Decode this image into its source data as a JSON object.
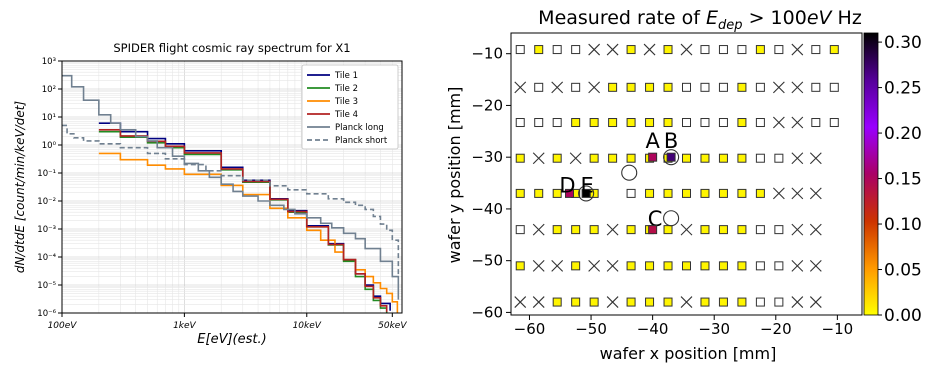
{
  "chart_data": [
    {
      "type": "line",
      "title": "SPIDER flight cosmic ray spectrum for X1",
      "xlabel": "E[eV](est.)",
      "ylabel": "dN/dtdE [count/min/keV/det]",
      "xscale": "log",
      "yscale": "log",
      "xlim": [
        100,
        60000
      ],
      "ylim": [
        1e-06,
        1000
      ],
      "x_ticks": [
        100,
        1000,
        10000,
        50000
      ],
      "x_tick_labels": [
        "100eV",
        "1keV",
        "10keV",
        "50keV"
      ],
      "y_ticks": [
        1e-06,
        1e-05,
        0.0001,
        0.001,
        0.01,
        0.1,
        1,
        10,
        100,
        1000
      ],
      "y_tick_labels": [
        "10⁻⁶",
        "10⁻⁵",
        "10⁻⁴",
        "10⁻³",
        "10⁻²",
        "10⁻¹",
        "10⁰",
        "10¹",
        "10²",
        "10³"
      ],
      "grid": true,
      "legend_position": "top-right",
      "series": [
        {
          "name": "Tile 1",
          "color": "#000080",
          "style": "step",
          "x": [
            200,
            300,
            500,
            700,
            1000,
            2000,
            3000,
            5000,
            7000,
            10000,
            15000,
            20000,
            25000,
            30000,
            35000,
            40000,
            48000
          ],
          "y": [
            6,
            3,
            1.7,
            1.1,
            0.62,
            0.16,
            0.055,
            0.012,
            0.0045,
            0.0013,
            0.0003,
            8e-05,
            2.5e-05,
            1e-05,
            4e-06,
            2.2e-06,
            1.2e-06
          ]
        },
        {
          "name": "Tile 2",
          "color": "#228b22",
          "style": "step",
          "x": [
            200,
            300,
            500,
            700,
            1000,
            2000,
            3000,
            5000,
            7000,
            10000,
            15000,
            20000,
            25000,
            30000,
            35000,
            40000,
            45000
          ],
          "y": [
            3,
            1.9,
            1.2,
            0.8,
            0.46,
            0.13,
            0.047,
            0.011,
            0.004,
            0.0012,
            0.00027,
            7e-05,
            2e-05,
            7e-06,
            2.8e-06,
            1.5e-06,
            1e-06
          ]
        },
        {
          "name": "Tile 3",
          "color": "#ff8c00",
          "style": "step",
          "x": [
            200,
            300,
            500,
            700,
            1000,
            2000,
            3000,
            5000,
            7000,
            10000,
            13000,
            17000,
            20000,
            25000,
            30000,
            35000,
            40000,
            45000,
            50000,
            55000
          ],
          "y": [
            0.5,
            0.3,
            0.19,
            0.14,
            0.09,
            0.036,
            0.017,
            0.0055,
            0.0025,
            0.0009,
            0.0004,
            0.00015,
            8e-05,
            3.5e-05,
            2e-05,
            1.2e-05,
            7.5e-06,
            5e-06,
            2.5e-06,
            1e-06
          ]
        },
        {
          "name": "Tile 4",
          "color": "#b22222",
          "style": "step",
          "x": [
            200,
            300,
            500,
            700,
            1000,
            2000,
            3000,
            5000,
            7000,
            10000,
            15000,
            20000,
            25000,
            30000,
            35000,
            40000,
            45000
          ],
          "y": [
            3.5,
            2.1,
            1.35,
            0.9,
            0.52,
            0.14,
            0.05,
            0.0115,
            0.0042,
            0.0012,
            0.00028,
            8e-05,
            2.5e-05,
            9e-06,
            3.5e-06,
            1.8e-06,
            1.1e-06
          ]
        },
        {
          "name": "Planck long",
          "color": "#708090",
          "style": "step",
          "x": [
            100,
            120,
            150,
            200,
            250,
            300,
            400,
            500,
            600,
            800,
            1000,
            1300,
            1600,
            2000,
            2500,
            3000,
            4000,
            5000,
            6500,
            8000,
            10000,
            13000,
            16000,
            20000,
            25000,
            30000,
            40000,
            50000,
            56000
          ],
          "y": [
            300,
            120,
            40,
            12,
            6,
            3.5,
            2,
            1.4,
            0.8,
            0.4,
            0.22,
            0.12,
            0.07,
            0.04,
            0.022,
            0.015,
            0.01,
            0.007,
            0.005,
            0.0035,
            0.0025,
            0.0016,
            0.0011,
            0.0007,
            0.00045,
            0.0002,
            7e-05,
            2e-05,
            3e-06
          ]
        },
        {
          "name": "Planck short",
          "color": "#708090",
          "style": "dashed-step",
          "x": [
            100,
            110,
            125,
            150,
            200,
            300,
            500,
            700,
            1000,
            1500,
            2000,
            3000,
            5000,
            7000,
            10000,
            15000,
            20000,
            25000,
            30000,
            35000,
            40000,
            45000,
            50000,
            56000
          ],
          "y": [
            5,
            2.5,
            1.8,
            1.4,
            1.1,
            0.8,
            0.5,
            0.32,
            0.2,
            0.12,
            0.08,
            0.055,
            0.035,
            0.025,
            0.018,
            0.012,
            0.009,
            0.007,
            0.005,
            0.0028,
            0.0015,
            0.0009,
            0.0004,
            2e-05
          ]
        }
      ]
    },
    {
      "type": "scatter",
      "title": "Measured rate of E_dep > 100eV Hz",
      "title_parts": {
        "pre": "Measured rate of ",
        "sym": "E",
        "sub": "dep",
        "post": " > 100",
        "unit_sym": "eV",
        "unit": " Hz"
      },
      "xlabel": "wafer x position [mm]",
      "ylabel": "wafer y position [mm]",
      "xlim": [
        -63,
        -6
      ],
      "ylim": [
        -60.5,
        -6
      ],
      "x_ticks": [
        -60,
        -50,
        -40,
        -30,
        -20,
        -10
      ],
      "y_ticks": [
        -10,
        -20,
        -30,
        -40,
        -50,
        -60
      ],
      "x_tick_labels": [
        "−60",
        "−50",
        "−40",
        "−30",
        "−20",
        "−10"
      ],
      "y_tick_labels": [
        "−10",
        "−20",
        "−30",
        "−40",
        "−50",
        "−60"
      ],
      "grid": false,
      "colorbar": {
        "min": 0.0,
        "max": 0.31,
        "ticks": [
          0.0,
          0.05,
          0.1,
          0.15,
          0.2,
          0.25,
          0.3
        ],
        "tick_labels": [
          "0.00",
          "0.05",
          "0.10",
          "0.15",
          "0.20",
          "0.25",
          "0.30"
        ],
        "colormap": "gnuplot-reversed",
        "stops": [
          "#ffff00",
          "#ff9900",
          "#cc3300",
          "#aa0066",
          "#9900ff",
          "#550099",
          "#000000"
        ]
      },
      "x_positions": [
        -61.5,
        -58.5,
        -55.5,
        -52.5,
        -49.5,
        -46.5,
        -43.5,
        -40.5,
        -37.5,
        -34.5,
        -31.5,
        -28.5,
        -25.5,
        -22.5,
        -19.5,
        -16.5,
        -13.5,
        -10.5,
        -7.5
      ],
      "rows": [
        {
          "y": -9.2,
          "pattern": "SYSSXXYXYXSSSYSXSY"
        },
        {
          "y": -16.5,
          "pattern": "XSXSXYYYYSSSYSXXSS"
        },
        {
          "y": -23.3,
          "pattern": "SSSYYYYYYSSSYSXXSS"
        },
        {
          "y": -30.2,
          "pattern": "YXYXYYYYYYYYYSSXX"
        },
        {
          "y": -37.0,
          "pattern": "YYYYY.SYYYYYYYXXX"
        },
        {
          "y": -44.0,
          "pattern": "SXYYYXYYYXYYYSSXX"
        },
        {
          "y": -51.0,
          "pattern": "YXXYXXYYYYYYYSSXX"
        },
        {
          "y": -58.0,
          "pattern": "XXYYYXYYYXYYYSSXX"
        }
      ],
      "pattern_key": {
        "S": "white square",
        "Y": "low-rate square",
        "X": "cross",
        ".": "empty"
      },
      "highlighted_points": [
        {
          "label": "A",
          "x": -40.0,
          "y": -30.0,
          "value": 0.15
        },
        {
          "label": "B",
          "x": -37.0,
          "y": -30.0,
          "value": 0.27
        },
        {
          "label": "C",
          "x": -37.0,
          "y": -41.8,
          "value": null
        },
        {
          "label": "D",
          "x": -53.5,
          "y": -37.0,
          "value": 0.15
        },
        {
          "label": "E",
          "x": -50.8,
          "y": -37.0,
          "value": 0.31
        },
        {
          "label": "",
          "x": -43.8,
          "y": -33.0,
          "value": null
        },
        {
          "label": "",
          "x": -40.0,
          "y": -44.0,
          "value": 0.14
        }
      ]
    }
  ]
}
